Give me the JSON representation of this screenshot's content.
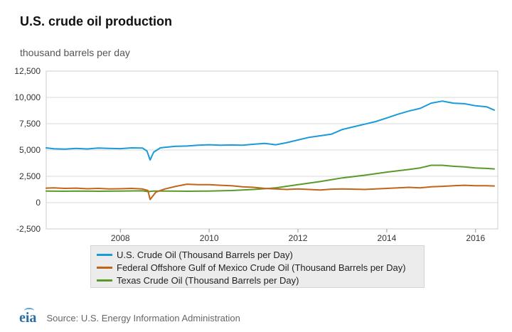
{
  "title": "U.S. crude oil production",
  "units": "thousand barrels per day",
  "source": "Source: U.S. Energy Information Administration",
  "logo_text": "eia",
  "colors": {
    "us": "#1a9bd7",
    "gom": "#c0651a",
    "texas": "#5a9a2a",
    "grid": "#d9d9d9",
    "axis": "#999999"
  },
  "chart_data": {
    "type": "line",
    "title": "U.S. crude oil production",
    "ylabel": "thousand barrels per day",
    "xlabel": "",
    "xlim": [
      2006.33,
      2016.5
    ],
    "ylim": [
      -2500,
      12500
    ],
    "yticks": [
      -2500,
      0,
      2500,
      5000,
      7500,
      10000,
      12500
    ],
    "ytick_labels": [
      "-2,500",
      "0",
      "2,500",
      "5,000",
      "7,500",
      "10,000",
      "12,500"
    ],
    "xticks": [
      2008,
      2010,
      2012,
      2014,
      2016
    ],
    "xtick_labels": [
      "2008",
      "2010",
      "2012",
      "2014",
      "2016"
    ],
    "series": [
      {
        "name": "U.S. Crude Oil (Thousand Barrels per Day)",
        "key": "us",
        "points": [
          [
            2006.33,
            5200
          ],
          [
            2006.5,
            5120
          ],
          [
            2006.75,
            5080
          ],
          [
            2007.0,
            5150
          ],
          [
            2007.25,
            5100
          ],
          [
            2007.5,
            5180
          ],
          [
            2007.75,
            5150
          ],
          [
            2008.0,
            5130
          ],
          [
            2008.25,
            5200
          ],
          [
            2008.5,
            5180
          ],
          [
            2008.6,
            4900
          ],
          [
            2008.67,
            4050
          ],
          [
            2008.75,
            4800
          ],
          [
            2008.9,
            5200
          ],
          [
            2009.0,
            5250
          ],
          [
            2009.25,
            5350
          ],
          [
            2009.5,
            5380
          ],
          [
            2009.75,
            5450
          ],
          [
            2010.0,
            5500
          ],
          [
            2010.25,
            5450
          ],
          [
            2010.5,
            5480
          ],
          [
            2010.75,
            5450
          ],
          [
            2011.0,
            5550
          ],
          [
            2011.25,
            5620
          ],
          [
            2011.5,
            5500
          ],
          [
            2011.75,
            5700
          ],
          [
            2012.0,
            5950
          ],
          [
            2012.25,
            6200
          ],
          [
            2012.5,
            6350
          ],
          [
            2012.75,
            6500
          ],
          [
            2013.0,
            6950
          ],
          [
            2013.25,
            7200
          ],
          [
            2013.5,
            7450
          ],
          [
            2013.75,
            7700
          ],
          [
            2014.0,
            8050
          ],
          [
            2014.25,
            8400
          ],
          [
            2014.5,
            8700
          ],
          [
            2014.75,
            8950
          ],
          [
            2015.0,
            9450
          ],
          [
            2015.25,
            9650
          ],
          [
            2015.5,
            9450
          ],
          [
            2015.75,
            9400
          ],
          [
            2016.0,
            9200
          ],
          [
            2016.25,
            9100
          ],
          [
            2016.42,
            8800
          ]
        ]
      },
      {
        "name": "Federal Offshore Gulf of Mexico Crude Oil (Thousand Barrels per Day)",
        "key": "gom",
        "points": [
          [
            2006.33,
            1380
          ],
          [
            2006.5,
            1400
          ],
          [
            2006.75,
            1350
          ],
          [
            2007.0,
            1380
          ],
          [
            2007.25,
            1320
          ],
          [
            2007.5,
            1350
          ],
          [
            2007.75,
            1300
          ],
          [
            2008.0,
            1320
          ],
          [
            2008.25,
            1350
          ],
          [
            2008.5,
            1300
          ],
          [
            2008.62,
            1150
          ],
          [
            2008.67,
            300
          ],
          [
            2008.8,
            1000
          ],
          [
            2009.0,
            1300
          ],
          [
            2009.25,
            1550
          ],
          [
            2009.5,
            1750
          ],
          [
            2009.75,
            1700
          ],
          [
            2010.0,
            1700
          ],
          [
            2010.25,
            1650
          ],
          [
            2010.5,
            1600
          ],
          [
            2010.75,
            1500
          ],
          [
            2011.0,
            1450
          ],
          [
            2011.25,
            1350
          ],
          [
            2011.5,
            1300
          ],
          [
            2011.75,
            1250
          ],
          [
            2012.0,
            1300
          ],
          [
            2012.25,
            1250
          ],
          [
            2012.5,
            1200
          ],
          [
            2012.75,
            1280
          ],
          [
            2013.0,
            1300
          ],
          [
            2013.25,
            1280
          ],
          [
            2013.5,
            1250
          ],
          [
            2013.75,
            1300
          ],
          [
            2014.0,
            1350
          ],
          [
            2014.25,
            1400
          ],
          [
            2014.5,
            1450
          ],
          [
            2014.75,
            1400
          ],
          [
            2015.0,
            1500
          ],
          [
            2015.25,
            1550
          ],
          [
            2015.5,
            1600
          ],
          [
            2015.75,
            1650
          ],
          [
            2016.0,
            1600
          ],
          [
            2016.25,
            1600
          ],
          [
            2016.42,
            1580
          ]
        ]
      },
      {
        "name": "Texas Crude Oil (Thousand Barrels per Day)",
        "key": "texas",
        "points": [
          [
            2006.33,
            1100
          ],
          [
            2006.75,
            1080
          ],
          [
            2007.0,
            1100
          ],
          [
            2007.5,
            1080
          ],
          [
            2008.0,
            1100
          ],
          [
            2008.5,
            1120
          ],
          [
            2008.62,
            1050
          ],
          [
            2008.75,
            1100
          ],
          [
            2009.0,
            1100
          ],
          [
            2009.5,
            1080
          ],
          [
            2010.0,
            1100
          ],
          [
            2010.5,
            1150
          ],
          [
            2011.0,
            1250
          ],
          [
            2011.5,
            1400
          ],
          [
            2012.0,
            1700
          ],
          [
            2012.5,
            2000
          ],
          [
            2013.0,
            2350
          ],
          [
            2013.5,
            2600
          ],
          [
            2014.0,
            2900
          ],
          [
            2014.5,
            3150
          ],
          [
            2014.75,
            3300
          ],
          [
            2015.0,
            3550
          ],
          [
            2015.25,
            3550
          ],
          [
            2015.5,
            3450
          ],
          [
            2015.75,
            3400
          ],
          [
            2016.0,
            3300
          ],
          [
            2016.25,
            3250
          ],
          [
            2016.42,
            3200
          ]
        ]
      }
    ]
  }
}
